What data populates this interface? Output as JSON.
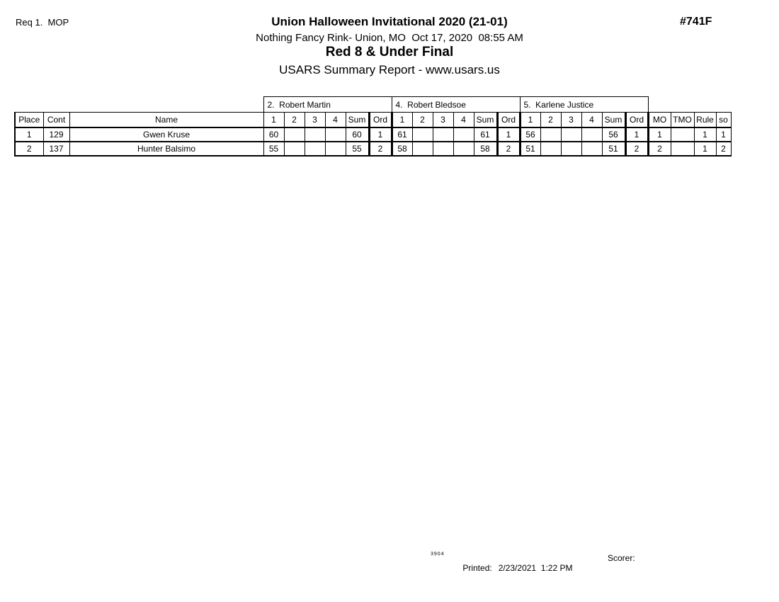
{
  "page": {
    "req_label": "Req 1.  MOP",
    "doc_number": "#741F"
  },
  "header": {
    "title": "Union Halloween Invitational 2020 (21-01)",
    "subtitle": "Nothing Fancy Rink- Union, MO  Oct 17, 2020  08:55 AM",
    "event_title": "Red 8 & Under Final",
    "report_title": "USARS Summary Report - www.usars.us"
  },
  "table": {
    "left_headers": [
      "Place",
      "Cont",
      "Name"
    ],
    "judges": [
      {
        "name": "2.  Robert Martin"
      },
      {
        "name": "4.  Robert Bledsoe"
      },
      {
        "name": "5.  Karlene Justice"
      }
    ],
    "judge_subheaders": [
      "1",
      "2",
      "3",
      "4",
      "Sum",
      "Ord"
    ],
    "right_headers": [
      "MO",
      "TMO",
      "Rule",
      "so"
    ],
    "rows": [
      {
        "place": "1",
        "cont": "129",
        "name": "Gwen Kruse",
        "judges": [
          {
            "s1": "60",
            "s2": "",
            "s3": "",
            "s4": "",
            "sum": "60",
            "ord": "1"
          },
          {
            "s1": "61",
            "s2": "",
            "s3": "",
            "s4": "",
            "sum": "61",
            "ord": "1"
          },
          {
            "s1": "56",
            "s2": "",
            "s3": "",
            "s4": "",
            "sum": "56",
            "ord": "1"
          }
        ],
        "mo": "1",
        "tmo": "",
        "rule": "1",
        "so": "1"
      },
      {
        "place": "2",
        "cont": "137",
        "name": "Hunter Balsimo",
        "judges": [
          {
            "s1": "55",
            "s2": "",
            "s3": "",
            "s4": "",
            "sum": "55",
            "ord": "2"
          },
          {
            "s1": "58",
            "s2": "",
            "s3": "",
            "s4": "",
            "sum": "58",
            "ord": "2"
          },
          {
            "s1": "51",
            "s2": "",
            "s3": "",
            "s4": "",
            "sum": "51",
            "ord": "2"
          }
        ],
        "mo": "2",
        "tmo": "",
        "rule": "1",
        "so": "2"
      }
    ]
  },
  "footer": {
    "version_code": "3904",
    "printed_label": "Printed:",
    "printed_value": "2/23/2021  1:22 PM",
    "scorer_label": "Scorer:"
  }
}
